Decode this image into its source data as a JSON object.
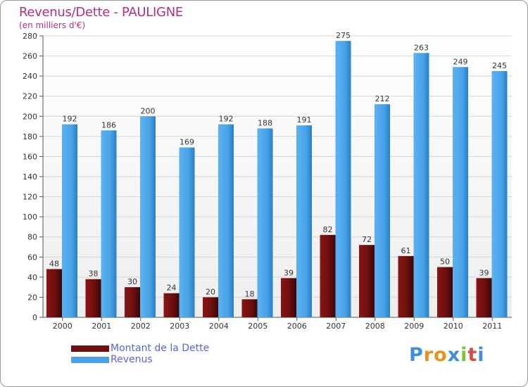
{
  "chart_data": {
    "type": "bar",
    "title": "Revenus/Dette - PAULIGNE",
    "subtitle": "(en milliers d'€)",
    "xlabel": "",
    "ylabel": "",
    "ylim": [
      0,
      280
    ],
    "yticks": [
      0,
      20,
      40,
      60,
      80,
      100,
      120,
      140,
      160,
      180,
      200,
      220,
      240,
      260,
      280
    ],
    "grid": true,
    "categories": [
      "2000",
      "2001",
      "2002",
      "2003",
      "2004",
      "2005",
      "2006",
      "2007",
      "2008",
      "2009",
      "2010",
      "2011"
    ],
    "series": [
      {
        "name": "Montant de la Dette",
        "color": "#7a1010",
        "values": [
          48,
          38,
          30,
          24,
          20,
          18,
          39,
          82,
          72,
          61,
          50,
          39
        ]
      },
      {
        "name": "Revenus",
        "color": "#4aa3e8",
        "values": [
          192,
          186,
          200,
          169,
          192,
          188,
          191,
          275,
          212,
          263,
          249,
          245
        ]
      }
    ],
    "legend_position": "bottom-left"
  },
  "logo": {
    "text": "Proxiti",
    "letters": [
      "P",
      "r",
      "o",
      "x",
      "i",
      "t",
      "i"
    ]
  }
}
